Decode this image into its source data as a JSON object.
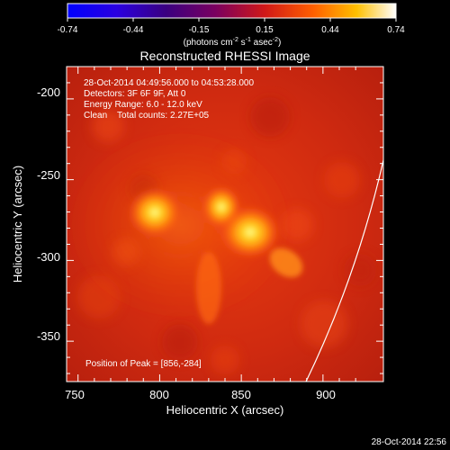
{
  "title": "Reconstructed RHESSI Image",
  "colorbar": {
    "ticks": [
      "-0.74",
      "-0.44",
      "-0.15",
      "0.15",
      "0.44",
      "0.74"
    ],
    "units_main": "(photons cm",
    "units_exp1": "-2",
    "units_mid1": " s",
    "units_exp2": "-1",
    "units_mid2": " asec",
    "units_exp3": "-2",
    "units_end": ")",
    "range": [
      -0.74,
      0.74
    ]
  },
  "info": {
    "line1": "28-Oct-2014 04:49:56.000 to 04:53:28.000",
    "line2": "Detectors: 3F 6F 9F, Att 0",
    "line3": "Energy Range: 6.0 - 12.0 keV",
    "line4": "Clean    Total counts: 2.27E+05"
  },
  "peak_label": "Position of Peak = [856,-284]",
  "axes": {
    "xlabel": "Heliocentric X (arcsec)",
    "ylabel": "Heliocentric Y (arcsec)",
    "xticks": [
      "750",
      "800",
      "850",
      "900"
    ],
    "yticks": [
      "-200",
      "-250",
      "-300",
      "-350"
    ],
    "xrange": [
      743,
      937
    ],
    "yrange": [
      -180,
      -375
    ]
  },
  "timestamp": "28-Oct-2014 22:56",
  "colors": {
    "limb": "#ffffff",
    "frame": "#ffffff",
    "border_red": "#c8201c"
  }
}
